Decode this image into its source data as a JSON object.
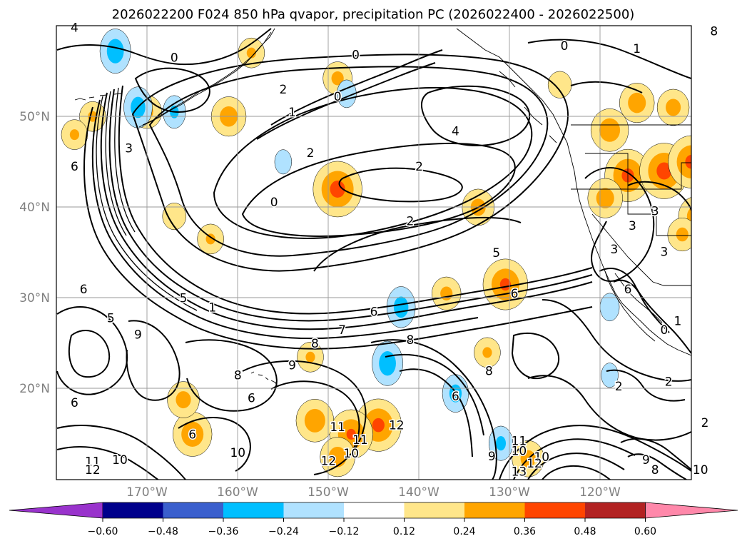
{
  "title": "2026022200 F024 850 hPa qvapor, precipitation PC (2026022400 - 2026022500)",
  "map": {
    "lat_labels": [
      "50°N",
      "40°N",
      "30°N",
      "20°N"
    ],
    "lon_labels": [
      "170°W",
      "160°W",
      "150°W",
      "140°W",
      "130°W",
      "120°W"
    ],
    "contour_labels": [
      {
        "text": "0",
        "lon": -167,
        "lat": 56.5
      },
      {
        "text": "1",
        "lon": -154,
        "lat": 50.5
      },
      {
        "text": "2",
        "lon": -155,
        "lat": 53
      },
      {
        "text": "0",
        "lon": -149,
        "lat": 52.2
      },
      {
        "text": "0",
        "lon": -147,
        "lat": 56.8
      },
      {
        "text": "2",
        "lon": -152,
        "lat": 46
      },
      {
        "text": "4",
        "lon": -136,
        "lat": 48.4
      },
      {
        "text": "2",
        "lon": -140,
        "lat": 44.5
      },
      {
        "text": "2",
        "lon": -141,
        "lat": 38.5
      },
      {
        "text": "0",
        "lon": -156,
        "lat": 40.6
      },
      {
        "text": "3",
        "lon": -172,
        "lat": 46.5
      },
      {
        "text": "6",
        "lon": -178,
        "lat": 44.5
      },
      {
        "text": "6",
        "lon": -178,
        "lat": 18.5
      },
      {
        "text": "6",
        "lon": -177,
        "lat": 31
      },
      {
        "text": "5",
        "lon": -174,
        "lat": 27.8
      },
      {
        "text": "9",
        "lon": -171,
        "lat": 26
      },
      {
        "text": "5",
        "lon": -166,
        "lat": 30
      },
      {
        "text": "1",
        "lon": -162.8,
        "lat": 29
      },
      {
        "text": "6",
        "lon": -145,
        "lat": 28.5
      },
      {
        "text": "7",
        "lon": -148.5,
        "lat": 26.5
      },
      {
        "text": "8",
        "lon": -151.5,
        "lat": 25
      },
      {
        "text": "9",
        "lon": -154,
        "lat": 22.6
      },
      {
        "text": "8",
        "lon": -160,
        "lat": 21.5
      },
      {
        "text": "8",
        "lon": -141,
        "lat": 25.4
      },
      {
        "text": "6",
        "lon": -158.5,
        "lat": 19
      },
      {
        "text": "5",
        "lon": -131.5,
        "lat": 35
      },
      {
        "text": "6",
        "lon": -129.5,
        "lat": 30.5
      },
      {
        "text": "8",
        "lon": -132.3,
        "lat": 22
      },
      {
        "text": "6",
        "lon": -136,
        "lat": 19.2
      },
      {
        "text": "12",
        "lon": -142.5,
        "lat": 16
      },
      {
        "text": "11",
        "lon": -149,
        "lat": 15.8
      },
      {
        "text": "11",
        "lon": -146.5,
        "lat": 14.4
      },
      {
        "text": "10",
        "lon": -147.5,
        "lat": 12.9
      },
      {
        "text": "12",
        "lon": -150,
        "lat": 12.1
      },
      {
        "text": "6",
        "lon": -165,
        "lat": 15
      },
      {
        "text": "10",
        "lon": -160,
        "lat": 13
      },
      {
        "text": "11",
        "lon": -176,
        "lat": 12
      },
      {
        "text": "10",
        "lon": -173,
        "lat": 12.2
      },
      {
        "text": "12",
        "lon": -176,
        "lat": 11.1
      },
      {
        "text": "11",
        "lon": -129,
        "lat": 14.3
      },
      {
        "text": "10",
        "lon": -129,
        "lat": 13.2
      },
      {
        "text": "10",
        "lon": -126.5,
        "lat": 12.5
      },
      {
        "text": "12",
        "lon": -127.3,
        "lat": 11.8
      },
      {
        "text": "9",
        "lon": -132,
        "lat": 12.6
      },
      {
        "text": "13",
        "lon": -129,
        "lat": 10.9
      },
      {
        "text": "2",
        "lon": -118,
        "lat": 20.3
      },
      {
        "text": "2",
        "lon": -112.5,
        "lat": 20.8
      },
      {
        "text": "9",
        "lon": -115,
        "lat": 12.2
      },
      {
        "text": "8",
        "lon": -114,
        "lat": 11.1
      },
      {
        "text": "10",
        "lon": -109,
        "lat": 11.1
      },
      {
        "text": "3",
        "lon": -114,
        "lat": 39.6
      },
      {
        "text": "3",
        "lon": -116.5,
        "lat": 38
      },
      {
        "text": "3",
        "lon": -118.5,
        "lat": 35.4
      },
      {
        "text": "3",
        "lon": -113,
        "lat": 35.1
      },
      {
        "text": "6",
        "lon": -117,
        "lat": 31
      },
      {
        "text": "0",
        "lon": -113,
        "lat": 26.5
      },
      {
        "text": "1",
        "lon": -111.5,
        "lat": 27.5
      },
      {
        "text": "2",
        "lon": -108.5,
        "lat": 16.3
      },
      {
        "text": "1",
        "lon": -116,
        "lat": 57.5
      },
      {
        "text": "0",
        "lon": -124,
        "lat": 57.8
      },
      {
        "text": "8",
        "lon": -107.5,
        "lat": 59.4
      },
      {
        "text": "4",
        "lon": -178,
        "lat": 59.8
      }
    ]
  },
  "colorbar": {
    "tick_labels": [
      "−0.60",
      "−0.48",
      "−0.36",
      "−0.24",
      "−0.12",
      "0.12",
      "0.24",
      "0.36",
      "0.48",
      "0.60"
    ],
    "colors": [
      "#9933cc",
      "#00008b",
      "#3a5fcd",
      "#00bfff",
      "#b0e2ff",
      "#ffffff",
      "#ffe68a",
      "#ffa500",
      "#ff4500",
      "#b22222",
      "#ff88aa"
    ]
  },
  "precip_blobs": [
    {
      "lon": -144.5,
      "lat": 16,
      "v": 0.38
    },
    {
      "lon": -147.5,
      "lat": 15,
      "v": 0.36
    },
    {
      "lon": -151.5,
      "lat": 16.5,
      "v": 0.32
    },
    {
      "lon": -149,
      "lat": 12.5,
      "v": 0.3
    },
    {
      "lon": -149,
      "lat": 42,
      "v": 0.4
    },
    {
      "lon": -130.5,
      "lat": 31.5,
      "v": 0.37
    },
    {
      "lon": -133.5,
      "lat": 40,
      "v": 0.28
    },
    {
      "lon": -137,
      "lat": 30.5,
      "v": 0.26
    },
    {
      "lon": -149,
      "lat": 54.2,
      "v": 0.26
    },
    {
      "lon": -165,
      "lat": 15,
      "v": 0.33
    },
    {
      "lon": -166,
      "lat": 18.8,
      "v": 0.28
    },
    {
      "lon": -152,
      "lat": 23.5,
      "v": 0.24
    },
    {
      "lon": -132.5,
      "lat": 24,
      "v": 0.24
    },
    {
      "lon": -128,
      "lat": 12.3,
      "v": 0.28
    },
    {
      "lon": -117,
      "lat": 43.5,
      "v": 0.38
    },
    {
      "lon": -113,
      "lat": 44,
      "v": 0.4
    },
    {
      "lon": -110,
      "lat": 45,
      "v": 0.38
    },
    {
      "lon": -119,
      "lat": 48.5,
      "v": 0.32
    },
    {
      "lon": -116,
      "lat": 51.5,
      "v": 0.3
    },
    {
      "lon": -112,
      "lat": 51,
      "v": 0.28
    },
    {
      "lon": -119.5,
      "lat": 41,
      "v": 0.3
    },
    {
      "lon": -109.5,
      "lat": 39,
      "v": 0.3
    },
    {
      "lon": -111,
      "lat": 37,
      "v": 0.26
    },
    {
      "lon": -176,
      "lat": 50,
      "v": 0.24
    },
    {
      "lon": -170,
      "lat": 50.5,
      "v": 0.26
    },
    {
      "lon": -178,
      "lat": 48,
      "v": 0.24
    },
    {
      "lon": -161,
      "lat": 50,
      "v": 0.3
    },
    {
      "lon": -158.5,
      "lat": 57,
      "v": 0.24
    },
    {
      "lon": -163,
      "lat": 36.5,
      "v": 0.24
    },
    {
      "lon": -167,
      "lat": 39,
      "v": 0.22
    },
    {
      "lon": -124.5,
      "lat": 53.5,
      "v": 0.22
    },
    {
      "lon": -143.5,
      "lat": 22.8,
      "v": -0.32
    },
    {
      "lon": -142,
      "lat": 29,
      "v": -0.3
    },
    {
      "lon": -136,
      "lat": 19.5,
      "v": -0.28
    },
    {
      "lon": -131,
      "lat": 14,
      "v": -0.26
    },
    {
      "lon": -173.5,
      "lat": 57.2,
      "v": -0.32
    },
    {
      "lon": -171,
      "lat": 51,
      "v": -0.3
    },
    {
      "lon": -167,
      "lat": 50.5,
      "v": -0.25
    },
    {
      "lon": -148,
      "lat": 52.5,
      "v": -0.22
    },
    {
      "lon": -155,
      "lat": 45,
      "v": -0.2
    },
    {
      "lon": -119,
      "lat": 29,
      "v": -0.22
    },
    {
      "lon": -119,
      "lat": 21.5,
      "v": -0.2
    }
  ]
}
